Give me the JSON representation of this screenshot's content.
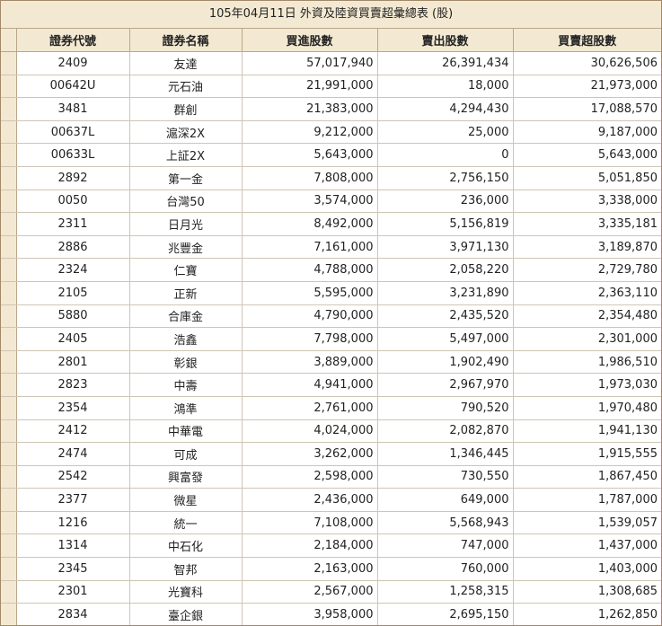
{
  "title": "105年04月11日 外資及陸資買賣超彙總表 (股)",
  "headers": [
    "證券代號",
    "證券名稱",
    "買進股數",
    "賣出股數",
    "買賣超股數"
  ],
  "rows": [
    [
      "2409",
      "友達",
      "57,017,940",
      "26,391,434",
      "30,626,506"
    ],
    [
      "00642U",
      "元石油",
      "21,991,000",
      "18,000",
      "21,973,000"
    ],
    [
      "3481",
      "群創",
      "21,383,000",
      "4,294,430",
      "17,088,570"
    ],
    [
      "00637L",
      "滬深2X",
      "9,212,000",
      "25,000",
      "9,187,000"
    ],
    [
      "00633L",
      "上証2X",
      "5,643,000",
      "0",
      "5,643,000"
    ],
    [
      "2892",
      "第一金",
      "7,808,000",
      "2,756,150",
      "5,051,850"
    ],
    [
      "0050",
      "台灣50",
      "3,574,000",
      "236,000",
      "3,338,000"
    ],
    [
      "2311",
      "日月光",
      "8,492,000",
      "5,156,819",
      "3,335,181"
    ],
    [
      "2886",
      "兆豐金",
      "7,161,000",
      "3,971,130",
      "3,189,870"
    ],
    [
      "2324",
      "仁寶",
      "4,788,000",
      "2,058,220",
      "2,729,780"
    ],
    [
      "2105",
      "正新",
      "5,595,000",
      "3,231,890",
      "2,363,110"
    ],
    [
      "5880",
      "合庫金",
      "4,790,000",
      "2,435,520",
      "2,354,480"
    ],
    [
      "2405",
      "浩鑫",
      "7,798,000",
      "5,497,000",
      "2,301,000"
    ],
    [
      "2801",
      "彰銀",
      "3,889,000",
      "1,902,490",
      "1,986,510"
    ],
    [
      "2823",
      "中壽",
      "4,941,000",
      "2,967,970",
      "1,973,030"
    ],
    [
      "2354",
      "鴻準",
      "2,761,000",
      "790,520",
      "1,970,480"
    ],
    [
      "2412",
      "中華電",
      "4,024,000",
      "2,082,870",
      "1,941,130"
    ],
    [
      "2474",
      "可成",
      "3,262,000",
      "1,346,445",
      "1,915,555"
    ],
    [
      "2542",
      "興富發",
      "2,598,000",
      "730,550",
      "1,867,450"
    ],
    [
      "2377",
      "微星",
      "2,436,000",
      "649,000",
      "1,787,000"
    ],
    [
      "1216",
      "統一",
      "7,108,000",
      "5,568,943",
      "1,539,057"
    ],
    [
      "1314",
      "中石化",
      "2,184,000",
      "747,000",
      "1,437,000"
    ],
    [
      "2345",
      "智邦",
      "2,163,000",
      "760,000",
      "1,403,000"
    ],
    [
      "2301",
      "光寶科",
      "2,567,000",
      "1,258,315",
      "1,308,685"
    ],
    [
      "2834",
      "臺企銀",
      "3,958,000",
      "2,695,150",
      "1,262,850"
    ]
  ]
}
